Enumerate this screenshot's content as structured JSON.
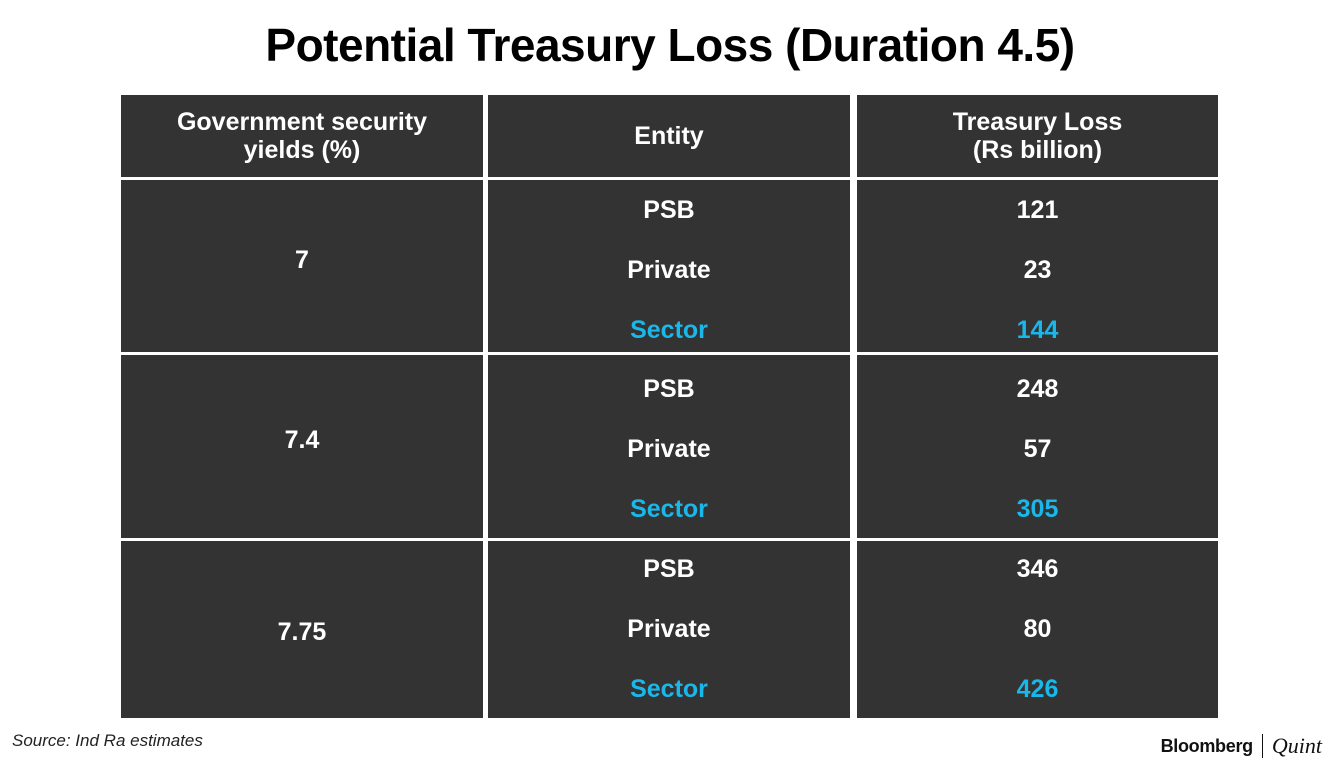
{
  "title": "Potential Treasury Loss (Duration 4.5)",
  "colors": {
    "cell_background": "#333333",
    "text": "#ffffff",
    "sector_accent": "#1ab7ea"
  },
  "chart_data": {
    "type": "table",
    "title": "Potential Treasury Loss (Duration 4.5)",
    "columns": [
      [
        "Government security",
        "yields (%)"
      ],
      [
        "Entity"
      ],
      [
        "Treasury Loss",
        "(Rs billion)"
      ]
    ],
    "groups": [
      {
        "yield": "7",
        "rows": [
          {
            "entity": "PSB",
            "loss": "121"
          },
          {
            "entity": "Private",
            "loss": "23"
          },
          {
            "entity": "Sector",
            "loss": "144"
          }
        ]
      },
      {
        "yield": "7.4",
        "rows": [
          {
            "entity": "PSB",
            "loss": "248"
          },
          {
            "entity": "Private",
            "loss": "57"
          },
          {
            "entity": "Sector",
            "loss": "305"
          }
        ]
      },
      {
        "yield": "7.75",
        "rows": [
          {
            "entity": "PSB",
            "loss": "346"
          },
          {
            "entity": "Private",
            "loss": "80"
          },
          {
            "entity": "Sector",
            "loss": "426"
          }
        ]
      }
    ]
  },
  "footer": {
    "source": "Source: Ind Ra estimates",
    "brand_primary": "Bloomberg",
    "brand_secondary": "Quint"
  }
}
